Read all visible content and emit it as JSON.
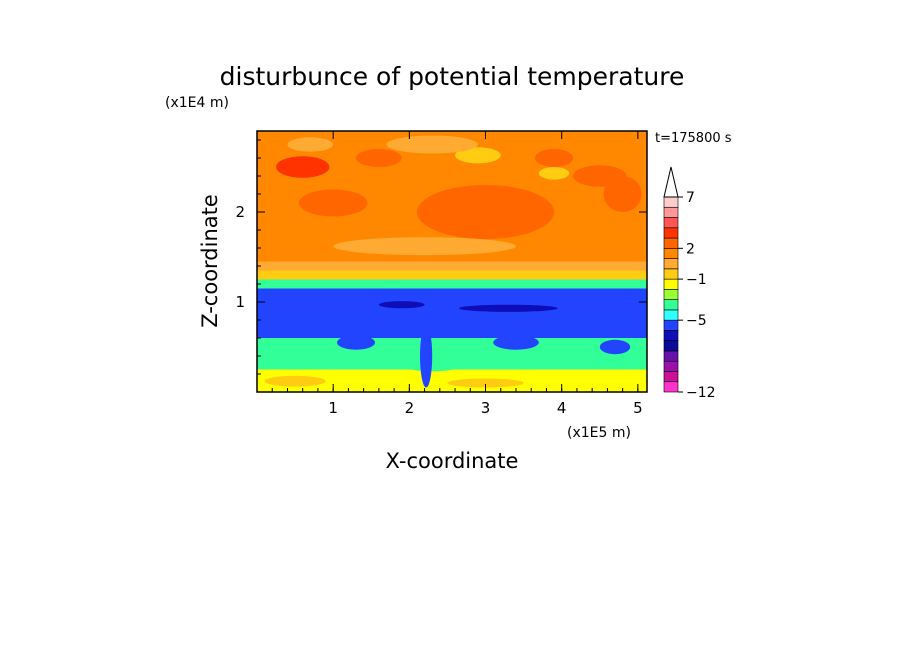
{
  "chart_data": {
    "type": "heatmap",
    "title": "disturbunce of potential temperature",
    "xlabel": "X-coordinate",
    "ylabel": "Z-coordinate",
    "x_unit": "(x1E5 m)",
    "y_unit": "(x1E4 m)",
    "time_label": "t=175800 s",
    "xlim": [
      0,
      5.12
    ],
    "ylim": [
      0,
      2.9
    ],
    "x_ticks": [
      1,
      2,
      3,
      4,
      5
    ],
    "y_ticks": [
      1,
      2
    ],
    "colorbar": {
      "levels": [
        -12,
        -11,
        -10,
        -9,
        -8,
        -7,
        -6,
        -5,
        -4,
        -3,
        -2,
        -1,
        0,
        1,
        2,
        3,
        4,
        5,
        6,
        7,
        8,
        9,
        10
      ],
      "colors": [
        "#ff33cc",
        "#cc1199",
        "#9911aa",
        "#6611aa",
        "#0a0a99",
        "#0e0eb8",
        "#2244ff",
        "#33ffff",
        "#33ff99",
        "#99ff33",
        "#ffff00",
        "#ffcc11",
        "#ffaa33",
        "#ff8800",
        "#ff6600",
        "#ff3300",
        "#ff5555",
        "#ff9999",
        "#ffcccc"
      ],
      "tick_labels": [
        "7",
        "2",
        "−1",
        "−5",
        "−12"
      ],
      "tick_values": [
        7,
        2,
        -1,
        -5,
        -12
      ]
    },
    "bands": [
      {
        "z_top": 2.9,
        "z_bottom": 1.45,
        "value": 1.5
      },
      {
        "z_top": 1.45,
        "z_bottom": 1.35,
        "value": 0.5
      },
      {
        "z_top": 1.35,
        "z_bottom": 1.25,
        "value": -1
      },
      {
        "z_top": 1.25,
        "z_bottom": 1.15,
        "value": -3.5
      },
      {
        "z_top": 1.15,
        "z_bottom": 0.6,
        "value": -5.5
      },
      {
        "z_top": 0.6,
        "z_bottom": 0.25,
        "value": -3.5
      },
      {
        "z_top": 0.25,
        "z_bottom": 0.0,
        "value": -2
      }
    ]
  }
}
